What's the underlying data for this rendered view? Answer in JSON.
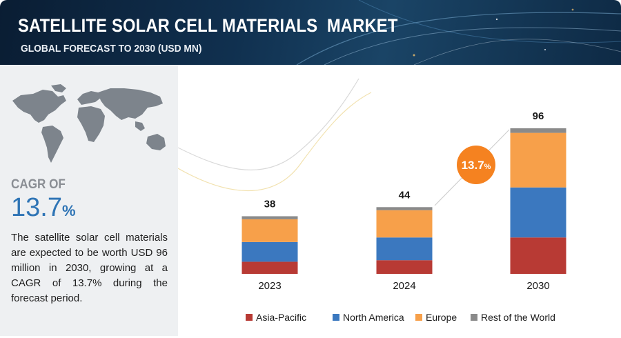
{
  "header": {
    "title": "SATELLITE SOLAR CELL MATERIALS  MARKET",
    "subtitle": "GLOBAL FORECAST TO 2030 (USD MN)"
  },
  "left_panel": {
    "cagr_label": "CAGR OF",
    "cagr_number": "13.7",
    "cagr_unit": "%",
    "description": "The satellite solar cell materials are expected to be worth USD 96 million in 2030, growing at a CAGR of 13.7% during the forecast period."
  },
  "badge": {
    "number": "13.7",
    "unit": "%"
  },
  "colors": {
    "Asia-Pacific": "#b83a34",
    "North America": "#3b78bf",
    "Europe": "#f7a04a",
    "Rest of the World": "#8a8a8a",
    "badge": "#f58220"
  },
  "chart_data": {
    "type": "bar",
    "stacked": true,
    "categories": [
      "2023",
      "2024",
      "2030"
    ],
    "totals": [
      38,
      44,
      96
    ],
    "series": [
      {
        "name": "Asia-Pacific",
        "values": [
          8,
          9,
          24
        ]
      },
      {
        "name": "North America",
        "values": [
          13,
          15,
          33
        ]
      },
      {
        "name": "Europe",
        "values": [
          15,
          18,
          36
        ]
      },
      {
        "name": "Rest of the World",
        "values": [
          2,
          2,
          3
        ]
      }
    ],
    "legend_position": "bottom",
    "grid": false,
    "ylim": [
      0,
      96
    ]
  }
}
